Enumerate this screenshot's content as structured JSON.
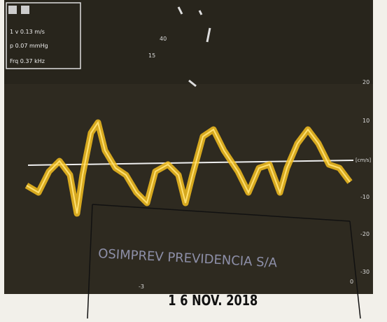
{
  "info_box": {
    "rows": [
      "1 v   0.13 m/s",
      "p   0.07 mmHg",
      "Frq   0.37 kHz"
    ]
  },
  "image_labels": [
    "40",
    "15"
  ],
  "scale": {
    "labels": [
      "20",
      "10",
      "[cm/s]",
      "-10",
      "-20",
      "-30"
    ]
  },
  "bottom_labels": [
    "-3",
    "0"
  ],
  "stamp": {
    "name": "OSIMPREV PREVIDENCIA S/A",
    "date": "1 6 NOV. 2018"
  }
}
